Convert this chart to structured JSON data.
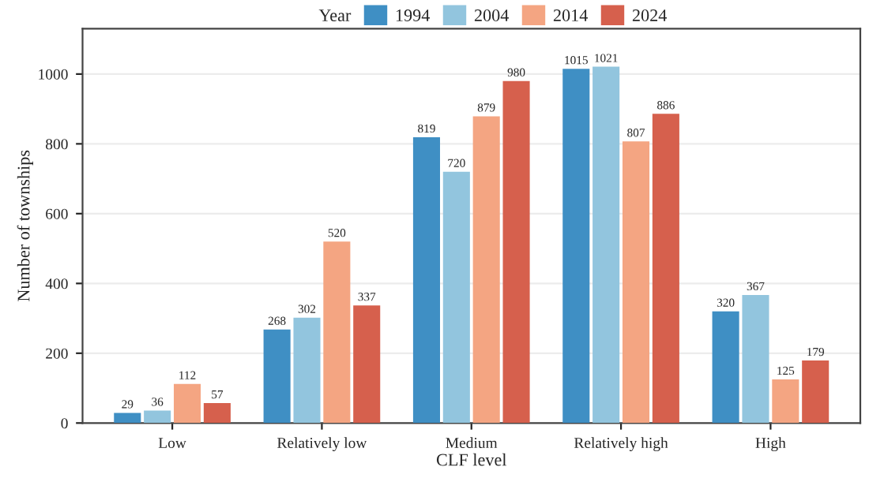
{
  "chart_data": {
    "type": "bar",
    "xlabel": "CLF level",
    "ylabel": "Number of townships",
    "legend_title": "Year",
    "categories": [
      "Low",
      "Relatively low",
      "Medium",
      "Relatively high",
      "High"
    ],
    "series": [
      {
        "name": "1994",
        "color": "#3f8fc4",
        "values": [
          29,
          268,
          819,
          1015,
          320
        ]
      },
      {
        "name": "2004",
        "color": "#92c5de",
        "values": [
          36,
          302,
          720,
          1021,
          367
        ]
      },
      {
        "name": "2014",
        "color": "#f4a582",
        "values": [
          112,
          520,
          879,
          807,
          125
        ]
      },
      {
        "name": "2024",
        "color": "#d6604d",
        "values": [
          57,
          337,
          980,
          886,
          179
        ]
      }
    ],
    "ylim": [
      0,
      1130
    ],
    "yticks": [
      0,
      200,
      400,
      600,
      800,
      1000
    ],
    "grid": "y",
    "legend": "top",
    "data_labels": true
  }
}
